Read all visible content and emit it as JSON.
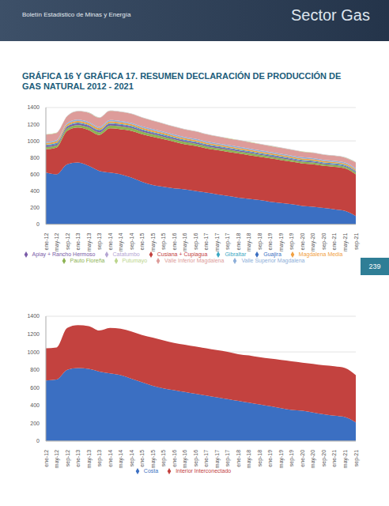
{
  "page": {
    "header_left": "Boletín Estadístico de Minas y Energía",
    "header_right": "Sector Gas",
    "title": "GRÁFICA 16 Y GRÁFICA 17. RESUMEN DECLARACIÓN DE PRODUCCIÓN DE GAS NATURAL 2012 - 2021",
    "page_number": "239"
  },
  "chart_data": [
    {
      "type": "area",
      "stacked": true,
      "grid": true,
      "legend": "bottom",
      "ylim": [
        0,
        1400
      ],
      "yticks": [
        0,
        200,
        400,
        600,
        800,
        1000,
        1200,
        1400
      ],
      "categories": [
        "ene-12",
        "may-12",
        "sep-12",
        "ene-13",
        "may-13",
        "sep-13",
        "ene-14",
        "may-14",
        "sep-14",
        "ene-15",
        "may-15",
        "sep-15",
        "ene-16",
        "may-16",
        "sep-16",
        "ene-17",
        "may-17",
        "sep-17",
        "ene-18",
        "may-18",
        "sep-18",
        "ene-19",
        "may-19",
        "sep-19",
        "ene-20",
        "may-20",
        "sep-20",
        "ene-21",
        "may-21",
        "sep-21"
      ],
      "series": [
        {
          "name": "Guajira",
          "color": "#3b6fc2",
          "values": [
            620,
            600,
            720,
            740,
            700,
            640,
            620,
            600,
            560,
            510,
            470,
            450,
            430,
            420,
            400,
            380,
            360,
            340,
            320,
            305,
            290,
            270,
            255,
            240,
            220,
            210,
            195,
            180,
            160,
            100
          ]
        },
        {
          "name": "Cusiana + Cupiagua",
          "color": "#c3423f",
          "values": [
            280,
            320,
            400,
            420,
            430,
            430,
            530,
            540,
            560,
            570,
            580,
            570,
            560,
            540,
            540,
            530,
            530,
            530,
            530,
            525,
            520,
            520,
            515,
            510,
            510,
            510,
            505,
            510,
            510,
            500
          ]
        },
        {
          "name": "Pauto Floreña",
          "color": "#8db353",
          "values": [
            25,
            25,
            30,
            30,
            32,
            32,
            35,
            35,
            33,
            32,
            30,
            30,
            28,
            28,
            27,
            26,
            25,
            25,
            24,
            24,
            23,
            23,
            22,
            22,
            21,
            21,
            20,
            20,
            20,
            20
          ]
        },
        {
          "name": "Apiay + Rancho Hermoso",
          "color": "#7a5ba8",
          "values": [
            20,
            20,
            20,
            20,
            20,
            20,
            20,
            18,
            18,
            18,
            17,
            17,
            16,
            16,
            15,
            15,
            15,
            14,
            14,
            14,
            13,
            13,
            13,
            12,
            12,
            12,
            12,
            11,
            11,
            11
          ]
        },
        {
          "name": "Gibraltar",
          "color": "#3ba8c4",
          "values": [
            10,
            10,
            10,
            10,
            10,
            10,
            10,
            10,
            10,
            10,
            10,
            10,
            10,
            10,
            10,
            10,
            10,
            10,
            10,
            10,
            10,
            10,
            10,
            10,
            10,
            10,
            10,
            10,
            10,
            10
          ]
        },
        {
          "name": "Magdalena Media",
          "color": "#f1a040",
          "values": [
            20,
            20,
            20,
            20,
            20,
            20,
            20,
            20,
            20,
            19,
            19,
            19,
            18,
            18,
            18,
            18,
            17,
            17,
            17,
            17,
            16,
            16,
            16,
            16,
            16,
            15,
            15,
            15,
            15,
            15
          ]
        },
        {
          "name": "Valle Superior Magdalena",
          "color": "#8eafd9",
          "values": [
            15,
            15,
            15,
            15,
            15,
            15,
            15,
            15,
            15,
            15,
            15,
            15,
            15,
            15,
            15,
            15,
            15,
            15,
            15,
            15,
            15,
            15,
            15,
            15,
            15,
            15,
            15,
            15,
            15,
            15
          ]
        },
        {
          "name": "Valle Inferior Magdalena",
          "color": "#dd9c9a",
          "values": [
            85,
            85,
            80,
            100,
            110,
            110,
            110,
            110,
            108,
            105,
            100,
            95,
            92,
            90,
            88,
            85,
            82,
            80,
            78,
            76,
            74,
            72,
            70,
            68,
            66,
            64,
            62,
            60,
            58,
            70
          ]
        },
        {
          "name": "Putumayo",
          "color": "#bcd58d",
          "values": [
            3,
            3,
            3,
            3,
            3,
            3,
            3,
            3,
            3,
            3,
            3,
            3,
            3,
            3,
            3,
            3,
            3,
            3,
            3,
            3,
            3,
            3,
            3,
            3,
            3,
            3,
            3,
            3,
            3,
            3
          ]
        },
        {
          "name": "Catatumbo",
          "color": "#b5a6d3",
          "values": [
            2,
            2,
            2,
            2,
            2,
            2,
            2,
            2,
            2,
            2,
            2,
            2,
            2,
            2,
            2,
            2,
            2,
            2,
            2,
            2,
            2,
            2,
            2,
            2,
            2,
            2,
            2,
            2,
            2,
            2
          ]
        }
      ]
    },
    {
      "type": "area",
      "stacked": true,
      "grid": true,
      "legend": "bottom",
      "ylim": [
        0,
        1400
      ],
      "yticks": [
        0,
        200,
        400,
        600,
        800,
        1000,
        1200,
        1400
      ],
      "categories": [
        "ene-12",
        "may-12",
        "sep-12",
        "ene-13",
        "may-13",
        "sep-13",
        "ene-14",
        "may-14",
        "sep-14",
        "ene-15",
        "may-15",
        "sep-15",
        "ene-16",
        "may-16",
        "sep-16",
        "ene-17",
        "may-17",
        "sep-17",
        "ene-18",
        "may-18",
        "sep-18",
        "ene-19",
        "may-19",
        "sep-19",
        "ene-20",
        "may-20",
        "sep-20",
        "ene-21",
        "may-21",
        "sep-21"
      ],
      "series": [
        {
          "name": "Costa",
          "color": "#3b6fc2",
          "values": [
            680,
            690,
            800,
            820,
            810,
            780,
            760,
            740,
            700,
            660,
            620,
            590,
            570,
            550,
            530,
            510,
            490,
            470,
            450,
            430,
            410,
            390,
            370,
            350,
            340,
            320,
            300,
            285,
            270,
            210
          ]
        },
        {
          "name": "Interior Interconectado",
          "color": "#c3423f",
          "values": [
            360,
            360,
            470,
            480,
            480,
            460,
            510,
            520,
            530,
            530,
            540,
            540,
            530,
            530,
            530,
            530,
            530,
            530,
            525,
            530,
            530,
            535,
            540,
            545,
            540,
            545,
            550,
            555,
            550,
            530
          ]
        }
      ]
    }
  ]
}
